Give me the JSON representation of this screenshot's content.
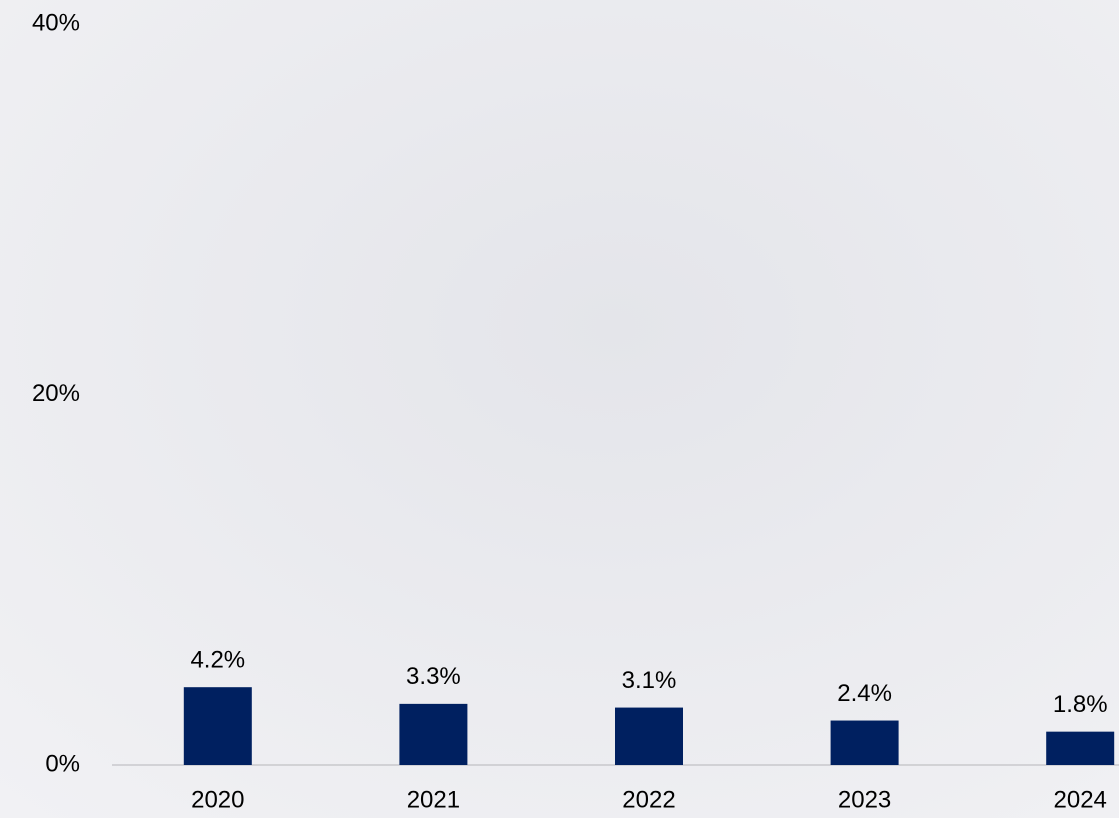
{
  "chart_data": {
    "type": "bar",
    "categories": [
      "2020",
      "2021",
      "2022",
      "2023",
      "2024"
    ],
    "values": [
      4.2,
      3.3,
      3.1,
      2.4,
      1.8
    ],
    "value_labels": [
      "4.2%",
      "3.3%",
      "3.1%",
      "2.4%",
      "1.8%"
    ],
    "color": "#002060",
    "ylim": [
      0,
      40
    ],
    "yticks": [
      {
        "value": 0,
        "label": "0%"
      },
      {
        "value": 20,
        "label": "20%"
      },
      {
        "value": 40,
        "label": "40%"
      }
    ],
    "grid": false
  }
}
